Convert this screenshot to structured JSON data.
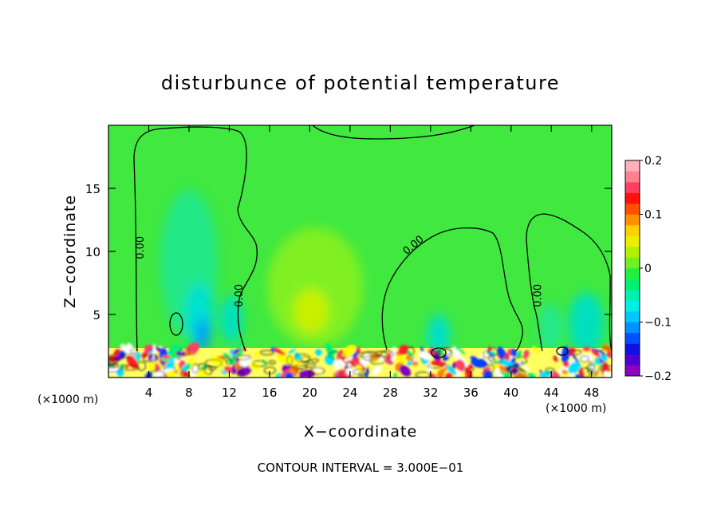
{
  "chart_data": {
    "type": "heatmap",
    "title": "disturbunce of potential temperature",
    "xlabel": "X−coordinate",
    "ylabel": "Z−coordinate",
    "x_unit_left": "(×1000 m)",
    "x_unit_right": "(×1000 m)",
    "footer": "CONTOUR INTERVAL = 3.000E−01",
    "xlim": [
      0,
      50
    ],
    "ylim": [
      0,
      20
    ],
    "x_ticks": [
      4,
      8,
      12,
      16,
      20,
      24,
      28,
      32,
      36,
      40,
      44,
      48
    ],
    "y_ticks": [
      5,
      10,
      15
    ],
    "colorbar": {
      "range": [
        -0.2,
        0.2
      ],
      "tick_values": [
        0.2,
        0.1,
        0,
        -0.1,
        -0.2
      ],
      "tick_labels": [
        "0.2",
        "0.1",
        "0",
        "−0.1",
        "−0.2"
      ],
      "colors": [
        "#8f00c0",
        "#5000d0",
        "#1010e0",
        "#0050ff",
        "#0090ff",
        "#00c8ff",
        "#00f0e8",
        "#00f0b0",
        "#00f070",
        "#20f040",
        "#70f020",
        "#b0f000",
        "#e8f000",
        "#ffd000",
        "#ff9000",
        "#ff5000",
        "#ff1010",
        "#ff4060",
        "#ff8090",
        "#ffb0b8"
      ]
    },
    "contour_labels": [
      {
        "text": "0.00",
        "x": 3.5,
        "z": 10.3
      },
      {
        "text": "0.00",
        "x": 13.3,
        "z": 6.5
      },
      {
        "text": "0.00",
        "x": 30.5,
        "z": 10.3
      },
      {
        "text": "0.00",
        "x": 43.0,
        "z": 6.5
      }
    ],
    "background_color": "#40e840"
  }
}
